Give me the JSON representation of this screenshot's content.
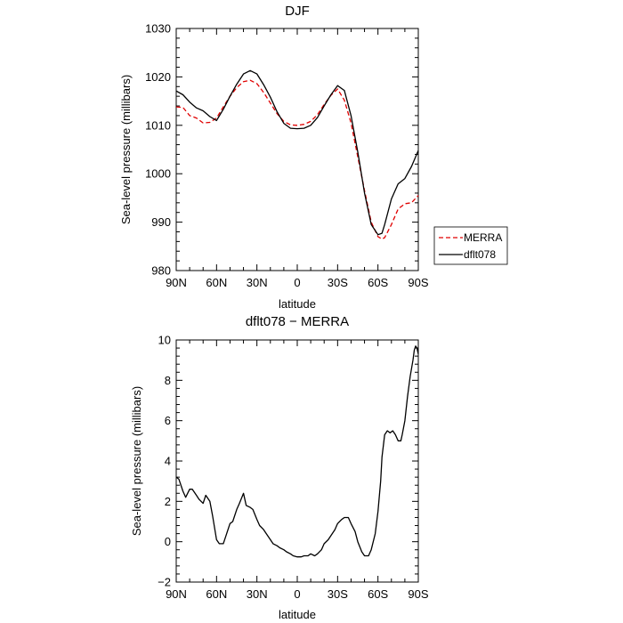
{
  "chart_data": [
    {
      "type": "line",
      "title": "DJF",
      "xlabel": "latitude",
      "ylabel": "Sea-level pressure (millibars)",
      "x_direction": "90N to 90S",
      "xlim": [
        90,
        -90
      ],
      "ylim": [
        980,
        1030
      ],
      "x_ticks": [
        90,
        60,
        30,
        0,
        -30,
        -60,
        -90
      ],
      "x_tick_labels": [
        "90N",
        "60N",
        "30N",
        "0",
        "30S",
        "60S",
        "90S"
      ],
      "y_ticks": [
        980,
        990,
        1000,
        1010,
        1020,
        1030
      ],
      "y_tick_labels": [
        "980",
        "990",
        "1000",
        "1010",
        "1020",
        "1030"
      ],
      "legend": {
        "placement": "right",
        "entries": [
          "MERRA",
          "dflt078"
        ]
      },
      "series": [
        {
          "name": "MERRA",
          "color": "#e00000",
          "style": "dashed",
          "x": [
            90,
            85,
            80,
            75,
            70,
            65,
            60,
            55,
            50,
            45,
            40,
            35,
            30,
            25,
            20,
            15,
            10,
            5,
            0,
            -5,
            -10,
            -15,
            -20,
            -25,
            -30,
            -35,
            -40,
            -45,
            -50,
            -55,
            -60,
            -63,
            -65,
            -70,
            -75,
            -80,
            -85,
            -90
          ],
          "y": [
            1013.8,
            1013.7,
            1012.0,
            1011.5,
            1010.5,
            1010.6,
            1011.5,
            1013.8,
            1016.0,
            1017.8,
            1019.0,
            1019.3,
            1018.6,
            1016.8,
            1014.6,
            1012.4,
            1010.8,
            1010.1,
            1010.0,
            1010.2,
            1010.8,
            1012.2,
            1014.3,
            1016.2,
            1017.5,
            1015.2,
            1010.5,
            1003.5,
            996.5,
            990.0,
            987.0,
            986.5,
            986.8,
            989.5,
            992.7,
            993.8,
            994.0,
            995.5
          ]
        },
        {
          "name": "dflt078",
          "color": "#000000",
          "style": "solid",
          "x": [
            90,
            85,
            80,
            75,
            70,
            65,
            60,
            55,
            50,
            45,
            40,
            35,
            30,
            25,
            20,
            15,
            10,
            5,
            0,
            -5,
            -10,
            -15,
            -20,
            -25,
            -30,
            -35,
            -40,
            -45,
            -50,
            -55,
            -60,
            -63,
            -65,
            -70,
            -75,
            -80,
            -85,
            -90
          ],
          "y": [
            1017.1,
            1016.3,
            1014.8,
            1013.6,
            1013.0,
            1011.8,
            1011.0,
            1013.3,
            1016.0,
            1018.5,
            1020.6,
            1021.3,
            1020.6,
            1018.4,
            1015.8,
            1012.8,
            1010.4,
            1009.4,
            1009.3,
            1009.4,
            1010.0,
            1011.6,
            1014.0,
            1016.3,
            1018.2,
            1017.2,
            1012.0,
            1004.5,
            996.0,
            989.5,
            987.4,
            987.7,
            989.5,
            994.8,
            997.9,
            999.0,
            1001.5,
            1004.8
          ]
        }
      ]
    },
    {
      "type": "line",
      "title": "dflt078 − MERRA",
      "xlabel": "latitude",
      "ylabel": "Sea-level pressure (millibars)",
      "x_direction": "90N to 90S",
      "xlim": [
        90,
        -90
      ],
      "ylim": [
        -2,
        10
      ],
      "x_ticks": [
        90,
        60,
        30,
        0,
        -30,
        -60,
        -90
      ],
      "x_tick_labels": [
        "90N",
        "60N",
        "30N",
        "0",
        "30S",
        "60S",
        "90S"
      ],
      "y_ticks": [
        -2,
        0,
        2,
        4,
        6,
        8,
        10
      ],
      "y_tick_labels": [
        "−2",
        "0",
        "2",
        "4",
        "6",
        "8",
        "10"
      ],
      "series": [
        {
          "color": "#000000",
          "style": "solid",
          "x": [
            90,
            88,
            85,
            83,
            80,
            78,
            75,
            73,
            70,
            68,
            65,
            63,
            60,
            58,
            55,
            53,
            50,
            48,
            45,
            43,
            40,
            38,
            35,
            33,
            30,
            28,
            25,
            23,
            20,
            18,
            15,
            13,
            10,
            8,
            5,
            3,
            0,
            -3,
            -5,
            -8,
            -10,
            -13,
            -15,
            -18,
            -20,
            -23,
            -25,
            -28,
            -30,
            -33,
            -35,
            -38,
            -40,
            -43,
            -45,
            -48,
            -50,
            -53,
            -55,
            -58,
            -60,
            -62,
            -63,
            -65,
            -67,
            -69,
            -71,
            -73,
            -75,
            -77,
            -78,
            -80,
            -82,
            -84,
            -86,
            -87,
            -88,
            -89,
            -90
          ],
          "y": [
            3.2,
            3.1,
            2.5,
            2.2,
            2.6,
            2.6,
            2.3,
            2.1,
            1.9,
            2.3,
            2.0,
            1.3,
            0.1,
            -0.1,
            -0.1,
            0.3,
            0.9,
            1.0,
            1.6,
            1.9,
            2.4,
            1.8,
            1.7,
            1.6,
            1.1,
            0.8,
            0.6,
            0.4,
            0.1,
            -0.1,
            -0.2,
            -0.3,
            -0.4,
            -0.5,
            -0.6,
            -0.7,
            -0.75,
            -0.75,
            -0.7,
            -0.7,
            -0.6,
            -0.7,
            -0.6,
            -0.4,
            -0.1,
            0.1,
            0.3,
            0.6,
            0.9,
            1.1,
            1.2,
            1.2,
            0.9,
            0.5,
            0.0,
            -0.5,
            -0.7,
            -0.7,
            -0.4,
            0.4,
            1.5,
            3.0,
            4.2,
            5.3,
            5.5,
            5.4,
            5.5,
            5.3,
            5.0,
            5.0,
            5.3,
            6.0,
            7.2,
            8.2,
            9.0,
            9.5,
            9.7,
            9.6,
            9.3
          ]
        }
      ]
    }
  ]
}
